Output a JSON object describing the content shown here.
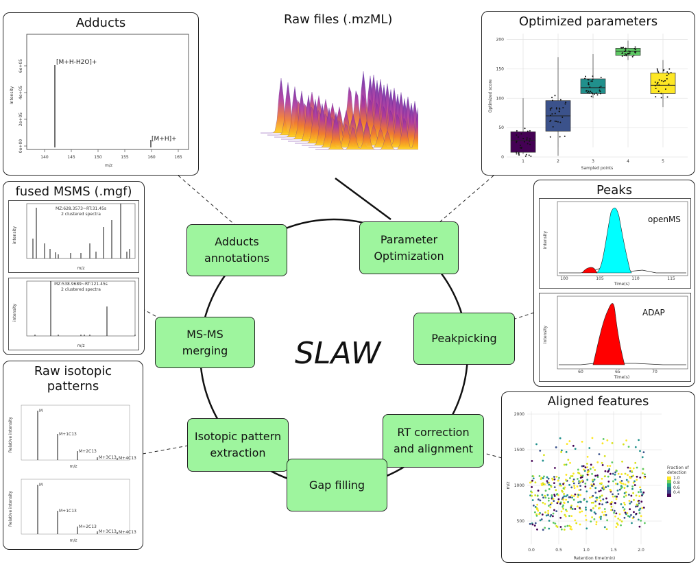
{
  "center_label": "SLAW",
  "steps": {
    "adducts": "Adducts\nannotations",
    "param_opt": "Parameter\nOptimization",
    "msms": "MS-MS\nmerging",
    "peakpicking": "Peakpicking",
    "isotopic": "Isotopic pattern\nextraction",
    "rt": "RT correction\nand alignment",
    "gap": "Gap filling"
  },
  "raw_files": {
    "title": "Raw files (.mzML)"
  },
  "adducts_panel": {
    "title": "Adducts",
    "ylabel": "Intensity",
    "xlabel": "m/z",
    "ticks_x": [
      "140",
      "145",
      "150",
      "155",
      "160",
      "165"
    ],
    "ticks_y": [
      "0e+00",
      "2e+05",
      "4e+05",
      "6e+05"
    ],
    "peak_labels": [
      "[M+H-H2O]+",
      "[M+H]+"
    ]
  },
  "msms_panel": {
    "title": "fused MSMS (.mgf)",
    "spec1": {
      "label1": "MZ:628.3573~RT:31.45s",
      "label2": "2 clustered spectra",
      "xlabel": "m/z",
      "ylabel": "intensity"
    },
    "spec2": {
      "label1": "MZ:538.9689~RT:121.45s",
      "label2": "2 clustered spectra",
      "xlabel": "m/z",
      "ylabel": "intensity"
    }
  },
  "iso_panel": {
    "title": "Raw isotopic\npatterns",
    "ylabel": "Relative intensity",
    "xlabel": "m/z",
    "labels": [
      "M",
      "M+1C13",
      "M+2C13",
      "M+3C13",
      "M+4C13"
    ]
  },
  "opt_panel": {
    "title": "Optimized parameters",
    "ylabel": "Optimized score",
    "xlabel": "Sampled points",
    "ticks_x": [
      "1",
      "2",
      "3",
      "4",
      "5"
    ],
    "ticks_y": [
      "0",
      "50",
      "100",
      "150",
      "200"
    ],
    "colors": [
      "#440154",
      "#3b528b",
      "#21908c",
      "#5dc863",
      "#fde725"
    ]
  },
  "peaks_panel": {
    "title": "Peaks",
    "top": {
      "label": "openMS",
      "xlabel": "Time(s)",
      "ylabel": "intensity",
      "ticks_x": [
        "100",
        "105",
        "110",
        "115"
      ]
    },
    "bottom": {
      "label": "ADAP",
      "xlabel": "Time(s)",
      "ylabel": "intensity",
      "ticks_x": [
        "60",
        "65",
        "70"
      ]
    },
    "colors": {
      "main": "#00ffff",
      "minor": "#ff0000"
    }
  },
  "aligned_panel": {
    "title": "Aligned features",
    "ylabel": "m/z",
    "xlabel": "Retention time(min)",
    "ticks_x": [
      "0.0",
      "0.5",
      "1.0",
      "1.5",
      "2.0"
    ],
    "ticks_y": [
      "500",
      "1000",
      "1500",
      "2000"
    ],
    "legend_title": "Fraction of\ndetection",
    "legend_ticks": [
      "1.0",
      "0.8",
      "0.6",
      "0.4"
    ]
  }
}
